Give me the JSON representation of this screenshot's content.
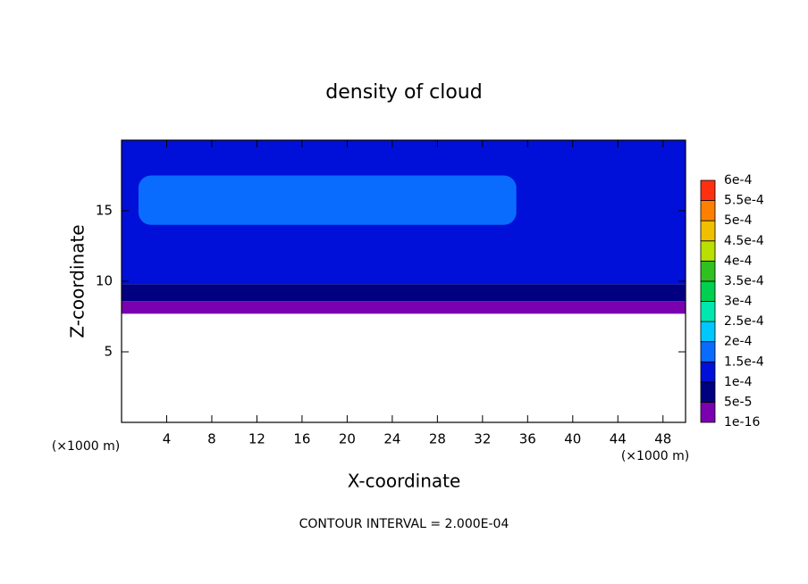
{
  "chart_data": {
    "type": "contour",
    "title": "density of cloud",
    "xlabel": "X-coordinate",
    "ylabel": "Z-coordinate",
    "x_unit": "(×1000 m)",
    "y_unit": "(×1000 m)",
    "note": "CONTOUR INTERVAL = 2.000E-04",
    "xlim": [
      0,
      50
    ],
    "xticks": [
      4,
      8,
      12,
      16,
      20,
      24,
      28,
      32,
      36,
      40,
      44,
      48
    ],
    "ylim": [
      0,
      20
    ],
    "yticks": [
      5,
      10,
      15
    ],
    "cticks": [
      {
        "value": 1e-16,
        "label": "1e-16"
      },
      {
        "value": 5e-05,
        "label": "5e-5"
      },
      {
        "value": 0.0001,
        "label": "1e-4"
      },
      {
        "value": 0.00015,
        "label": "1.5e-4"
      },
      {
        "value": 0.0002,
        "label": "2e-4"
      },
      {
        "value": 0.00025,
        "label": "2.5e-4"
      },
      {
        "value": 0.0003,
        "label": "3e-4"
      },
      {
        "value": 0.00035,
        "label": "3.5e-4"
      },
      {
        "value": 0.0004,
        "label": "4e-4"
      },
      {
        "value": 0.00045,
        "label": "4.5e-4"
      },
      {
        "value": 0.0005,
        "label": "5e-4"
      },
      {
        "value": 0.00055,
        "label": "5.5e-4"
      },
      {
        "value": 0.0006,
        "label": "6e-4"
      }
    ],
    "colors": [
      "#7a00b0",
      "#000080",
      "#0010d8",
      "#0a6cff",
      "#00c8ff",
      "#00e8b0",
      "#00d050",
      "#30c020",
      "#b8e000",
      "#f0c000",
      "#ff8000",
      "#ff3010",
      "#ff8a8a"
    ],
    "regions": [
      {
        "level": 0,
        "x": [
          0,
          50
        ],
        "z": [
          7.7,
          8.6
        ]
      },
      {
        "level": 1,
        "x": [
          0,
          50
        ],
        "z": [
          8.6,
          9.8
        ]
      },
      {
        "level": 2,
        "x": [
          0,
          50
        ],
        "z": [
          9.8,
          20
        ]
      },
      {
        "level": 3,
        "x": [
          1.5,
          35
        ],
        "z": [
          14,
          17.5
        ]
      }
    ]
  }
}
